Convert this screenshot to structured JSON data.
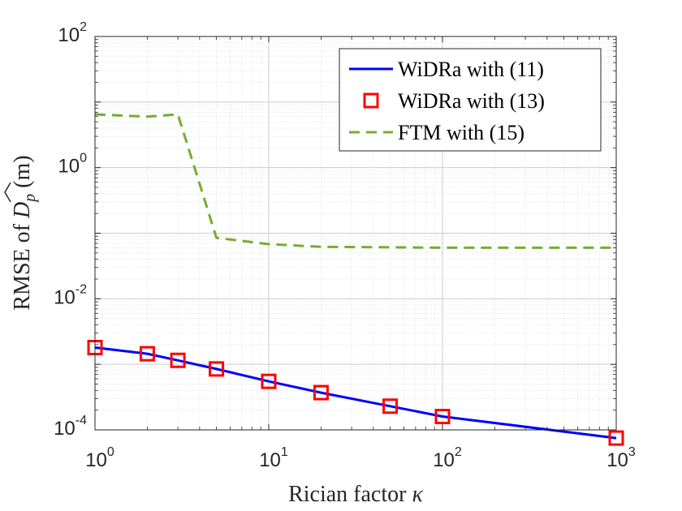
{
  "chart_data": {
    "type": "line",
    "xscale": "log",
    "yscale": "log",
    "xlim": [
      1,
      1000
    ],
    "ylim": [
      0.0001,
      100
    ],
    "grid": true,
    "legend_position": "top-right",
    "xlabel": {
      "prefix": "Rician factor ",
      "symbol": "κ"
    },
    "ylabel": {
      "prefix": "RMSE of ",
      "symbol": "D",
      "subscript": "p",
      "suffix": " (m)"
    },
    "x_ticks": [
      {
        "value": 1,
        "base": "10",
        "exp": "0"
      },
      {
        "value": 10,
        "base": "10",
        "exp": "1"
      },
      {
        "value": 100,
        "base": "10",
        "exp": "2"
      },
      {
        "value": 1000,
        "base": "10",
        "exp": "3"
      }
    ],
    "y_ticks": [
      {
        "value": 0.0001,
        "base": "10",
        "exp": "-4"
      },
      {
        "value": 0.01,
        "base": "10",
        "exp": "-2"
      },
      {
        "value": 1,
        "base": "10",
        "exp": "0"
      },
      {
        "value": 100,
        "base": "10",
        "exp": "2"
      }
    ],
    "series": [
      {
        "name": "WiDRa with (11)",
        "style": "solid-line",
        "color": "#0000ff",
        "x": [
          1,
          2,
          3,
          5,
          10,
          20,
          50,
          100,
          1000
        ],
        "values": [
          0.0018,
          0.00145,
          0.00115,
          0.00085,
          0.00055,
          0.00037,
          0.00023,
          0.00016,
          7.5e-05
        ]
      },
      {
        "name": "WiDRa with (13)",
        "style": "square-markers",
        "color": "#ff0000",
        "x": [
          1,
          2,
          3,
          5,
          10,
          20,
          50,
          100,
          1000
        ],
        "values": [
          0.0018,
          0.00145,
          0.00115,
          0.00085,
          0.00055,
          0.00037,
          0.00023,
          0.00016,
          7.5e-05
        ]
      },
      {
        "name": "FTM with (15)",
        "style": "dashed-line",
        "color": "#77ac30",
        "x": [
          1,
          2,
          3,
          5,
          10,
          20,
          50,
          100,
          1000
        ],
        "values": [
          6.5,
          6.0,
          6.5,
          0.085,
          0.068,
          0.062,
          0.061,
          0.06,
          0.06
        ]
      }
    ]
  }
}
